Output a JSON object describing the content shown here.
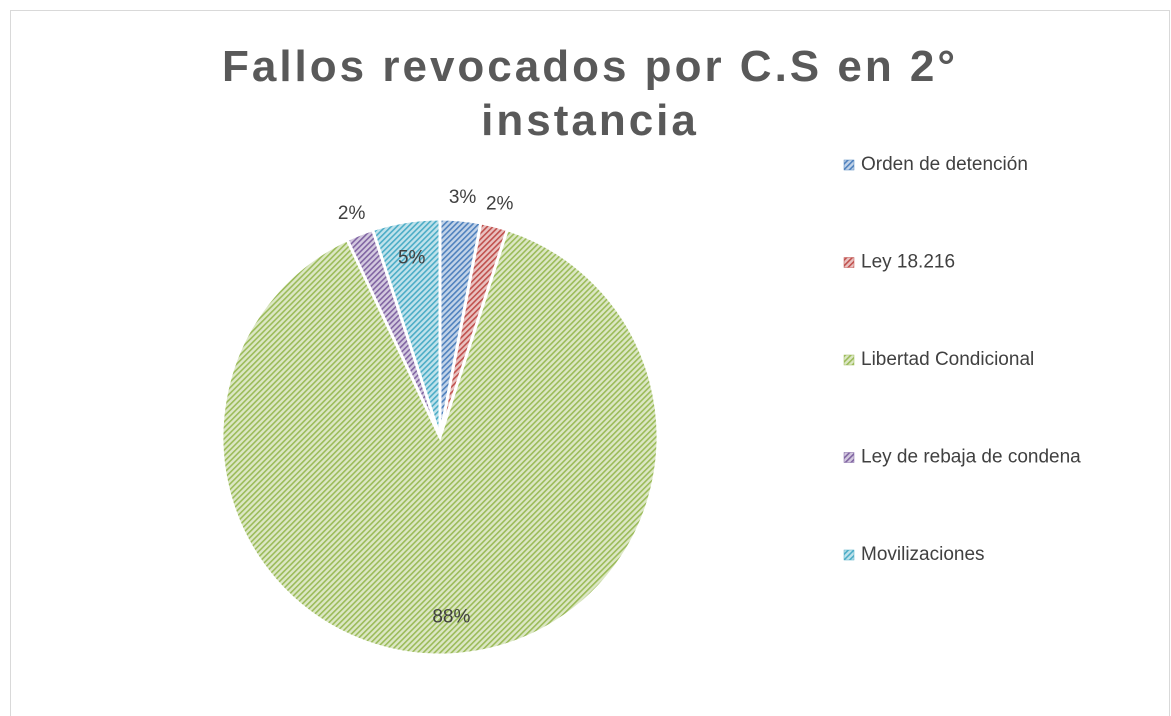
{
  "chart_data": {
    "type": "pie",
    "title": "Fallos revocados por C.S en 2° instancia",
    "categories": [
      "Orden de detención",
      "Ley 18.216",
      "Libertad Condicional",
      "Ley de rebaja de condena",
      "Movilizaciones"
    ],
    "values": [
      3,
      2,
      88,
      2,
      5
    ],
    "value_labels": [
      "3%",
      "2%",
      "88%",
      "2%",
      "5%"
    ],
    "colors": [
      "#4f81bd",
      "#c0504d",
      "#9bbb59",
      "#8064a2",
      "#4bacc6"
    ],
    "legend": "right"
  }
}
